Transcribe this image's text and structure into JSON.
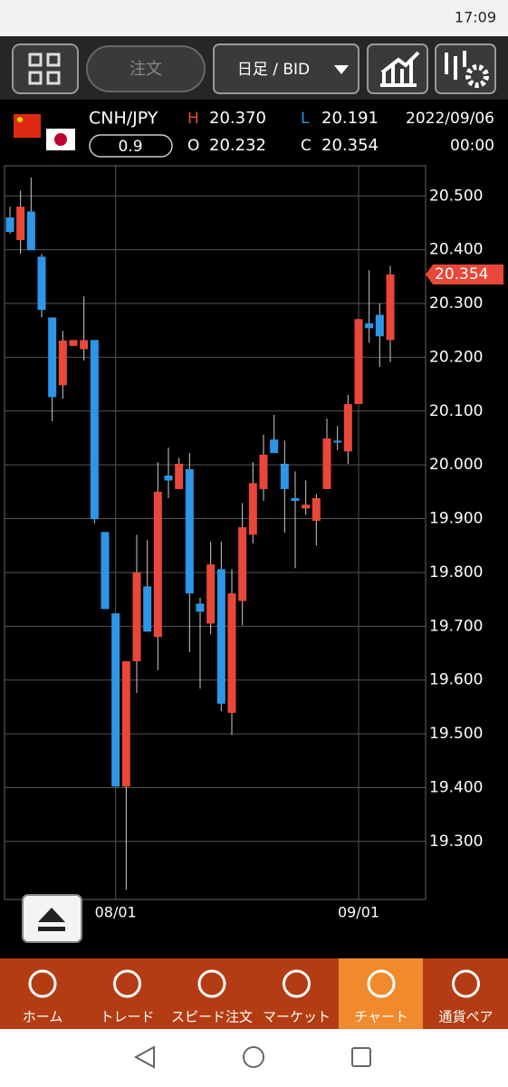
{
  "status_bar": {
    "time": "17:09"
  },
  "toolbar": {
    "order": "注文",
    "period": "日足 / BID"
  },
  "quote": {
    "pair": "CNH/JPY",
    "spread": "0.9",
    "high_label": "H",
    "high": "20.370",
    "low_label": "L",
    "low": "20.191",
    "open_label": "O",
    "open": "20.232",
    "close_label": "C",
    "close": "20.354",
    "date": "2022/09/06",
    "time": "00:00"
  },
  "chart_data": {
    "type": "candlestick",
    "categories": [
      null,
      null,
      null,
      null,
      null,
      null,
      null,
      null,
      null,
      null,
      "08/01",
      null,
      null,
      null,
      null,
      null,
      null,
      null,
      null,
      null,
      null,
      null,
      null,
      null,
      null,
      null,
      null,
      null,
      null,
      null,
      null,
      null,
      null,
      "09/01",
      null,
      null,
      null
    ],
    "open": [
      20.46,
      20.418,
      20.471,
      20.387,
      20.274,
      20.148,
      20.221,
      20.215,
      20.232,
      19.875,
      19.724,
      19.402,
      19.635,
      19.774,
      19.68,
      19.98,
      19.955,
      19.992,
      19.742,
      19.705,
      19.806,
      19.539,
      19.747,
      19.87,
      19.955,
      20.047,
      20.002,
      19.938,
      19.919,
      19.896,
      19.955,
      20.045,
      20.025,
      20.113,
      20.263,
      20.279,
      20.232
    ],
    "high": [
      20.48,
      20.51,
      20.534,
      20.392,
      20.274,
      20.249,
      20.232,
      20.313,
      20.232,
      19.875,
      19.724,
      19.635,
      19.87,
      19.86,
      20.005,
      20.032,
      20.013,
      20.022,
      19.753,
      19.857,
      19.857,
      19.806,
      19.929,
      20.005,
      20.056,
      20.093,
      20.045,
      19.988,
      19.971,
      19.946,
      20.086,
      20.072,
      20.13,
      20.271,
      20.362,
      20.3,
      20.37
    ],
    "low": [
      20.43,
      20.392,
      20.399,
      20.274,
      20.081,
      20.123,
      20.221,
      20.194,
      19.891,
      19.732,
      19.402,
      19.21,
      19.576,
      19.69,
      19.618,
      19.938,
      19.955,
      19.652,
      19.584,
      19.685,
      19.542,
      19.498,
      19.702,
      19.854,
      19.933,
      20.022,
      19.874,
      19.808,
      19.907,
      19.85,
      19.955,
      20.027,
      20.002,
      20.113,
      20.227,
      20.182,
      20.191
    ],
    "close": [
      20.433,
      20.48,
      20.399,
      20.288,
      20.126,
      20.231,
      20.232,
      20.232,
      19.899,
      19.732,
      19.402,
      19.635,
      19.8,
      19.69,
      19.95,
      19.971,
      20.002,
      19.761,
      19.727,
      19.815,
      19.556,
      19.761,
      19.884,
      19.966,
      20.019,
      20.022,
      19.955,
      19.933,
      19.926,
      19.938,
      20.049,
      20.043,
      20.113,
      20.271,
      20.254,
      20.239,
      20.354
    ],
    "up_color": "#e9473a",
    "down_color": "#2c96e8",
    "ylim": [
      19.192,
      20.556
    ],
    "yticks": [
      {
        "value": 20.5,
        "label": "20.500"
      },
      {
        "value": 20.4,
        "label": "20.400"
      },
      {
        "value": 20.3,
        "label": "20.300"
      },
      {
        "value": 20.2,
        "label": "20.200"
      },
      {
        "value": 20.1,
        "label": "20.100"
      },
      {
        "value": 20.0,
        "label": "20.000"
      },
      {
        "value": 19.9,
        "label": "19.900"
      },
      {
        "value": 19.8,
        "label": "19.800"
      },
      {
        "value": 19.7,
        "label": "19.700"
      },
      {
        "value": 19.6,
        "label": "19.600"
      },
      {
        "value": 19.5,
        "label": "19.500"
      },
      {
        "value": 19.4,
        "label": "19.400"
      },
      {
        "value": 19.3,
        "label": "19.300"
      }
    ],
    "last_price": {
      "value": 20.354,
      "label": "20.354"
    },
    "grid": true
  },
  "nav": {
    "items": [
      "ホーム",
      "トレード",
      "スピード注文",
      "マーケット",
      "チャート",
      "通貨ペア"
    ]
  }
}
